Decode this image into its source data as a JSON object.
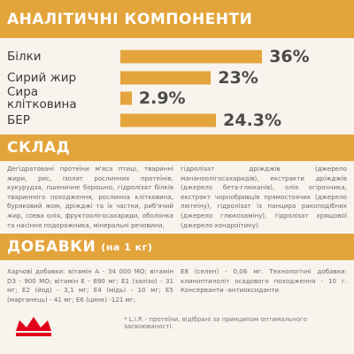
{
  "chart_data": {
    "type": "bar",
    "title": "АНАЛІТИЧНІ КОМПОНЕНТИ",
    "categories": [
      "Білки",
      "Сирий жир",
      "Сира клітковина",
      "БЕР"
    ],
    "values": [
      36,
      23,
      2.9,
      24.3
    ],
    "value_labels": [
      "36%",
      "23%",
      "2.9%",
      "24.3%"
    ],
    "color": "#e3a43b"
  },
  "composition": {
    "title": "СКЛАД",
    "columns": [
      "Дегідратовані протеїни м'яса птиці, тваринні жири, рис, ізолят рослинних протеїнів, кукурудза, пшеничне борошно, гідролізат білків тваринного походження, рослинна клітковина, буряковий жом, дріжджі та їх частки, риб'ячий жир, соєва олія, фруктоолігосахариди, оболонка та насіння подорожника, мінеральні речовини,",
      "гідролізат дріжджів (джерело мананоолігосахаридів), екстракти дріжджів (джерело бета-глюканів), олія огірочника, екстракт чорнобривців прямостоячих (джерело лютеїну), гідролізат із панцира ракоподібних (джерело глюкозаміну), гідролізат хрящової (джерело хондроїтину)."
    ]
  },
  "additives": {
    "title": "ДОБАВКИ",
    "subtitle": "(на 1 кг)",
    "columns": [
      "Харчові добавки: вітамін А - 34 000 МО; вітамін D3 - 900 МО; вітамін Е - 690 мг; Е1 (залізо) - 31 мг; Е2 (йод) - 3,1 мг; Е4 (мідь) - 10 мг; Е5 (марганець) - 41 мг; Е6 (цинк) -121 мг;",
      "Е8 (селен) - 0,06 мг. Технологічні добавки: клиноптилоліт осадового походження - 10 г. Консерванти -антиоксиданти."
    ]
  },
  "footnote": "* L.I.P. - протеїни, відібрані за принципом оптимального засвоюваності."
}
